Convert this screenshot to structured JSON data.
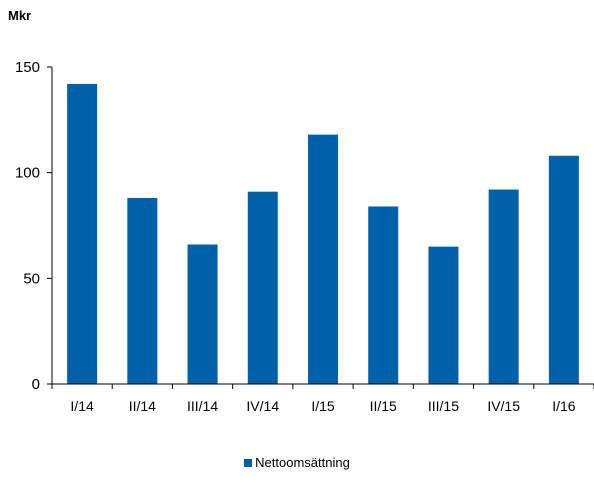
{
  "chart_data": {
    "type": "bar",
    "unit_label": "Mkr",
    "categories": [
      "I/14",
      "II/14",
      "III/14",
      "IV/14",
      "I/15",
      "II/15",
      "III/15",
      "IV/15",
      "I/16"
    ],
    "series": [
      {
        "name": "Nettoomsättning",
        "values": [
          142,
          88,
          66,
          91,
          118,
          84,
          65,
          92,
          108
        ],
        "color": "#0060a8"
      }
    ],
    "ylim": [
      0,
      150
    ],
    "yticks": [
      0,
      50,
      100,
      150
    ],
    "grid": false,
    "legend_position": "bottom-center"
  }
}
